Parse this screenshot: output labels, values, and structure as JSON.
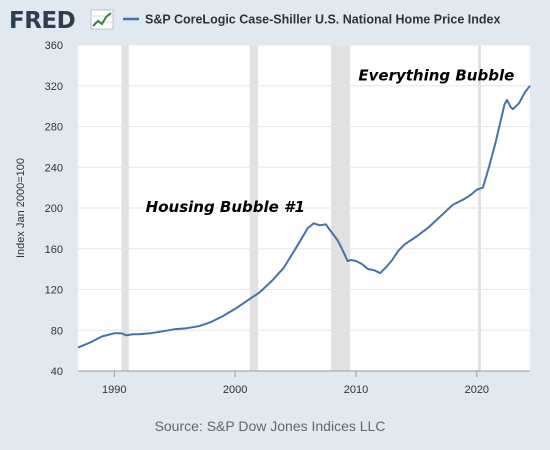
{
  "header": {
    "logo_text": "FRED",
    "logo_icon": "fred-chart-logo-icon",
    "legend_label": "S&P CoreLogic Case-Shiller U.S. National Home Price Index"
  },
  "source": "Source: S&P Dow Jones Indices LLC",
  "chart_data": {
    "type": "line",
    "title": "",
    "xlabel": "",
    "ylabel": "Index Jan 2000=100",
    "xlim": [
      1987,
      2024.4
    ],
    "ylim": [
      40,
      360
    ],
    "x_ticks": [
      1990,
      2000,
      2010,
      2020
    ],
    "y_ticks": [
      40,
      80,
      120,
      160,
      200,
      240,
      280,
      320,
      360
    ],
    "grid": true,
    "line_color": "#4572a7",
    "recession_color": "#e1e1e1",
    "recessions": [
      [
        1990.6,
        1991.2
      ],
      [
        2001.2,
        2001.9
      ],
      [
        2007.95,
        2009.5
      ],
      [
        2020.1,
        2020.35
      ]
    ],
    "series": [
      {
        "name": "S&P CoreLogic Case-Shiller U.S. National Home Price Index",
        "x": [
          1987.0,
          1988.0,
          1989.0,
          1990.0,
          1990.6,
          1991.0,
          1991.5,
          1992.0,
          1993.0,
          1994.0,
          1995.0,
          1996.0,
          1997.0,
          1998.0,
          1999.0,
          2000.0,
          2001.0,
          2002.0,
          2003.0,
          2004.0,
          2005.0,
          2006.0,
          2006.5,
          2007.0,
          2007.5,
          2008.0,
          2008.5,
          2009.0,
          2009.3,
          2009.6,
          2010.0,
          2010.5,
          2011.0,
          2011.5,
          2012.0,
          2012.5,
          2013.0,
          2013.5,
          2014.0,
          2015.0,
          2016.0,
          2017.0,
          2018.0,
          2019.0,
          2019.5,
          2020.0,
          2020.5,
          2021.0,
          2021.5,
          2022.0,
          2022.3,
          2022.5,
          2022.8,
          2023.0,
          2023.5,
          2024.0,
          2024.4
        ],
        "values": [
          63,
          68,
          74,
          77,
          77,
          75,
          76,
          76,
          77,
          79,
          81,
          82,
          84,
          88,
          94,
          101,
          109,
          117,
          128,
          141,
          160,
          180,
          185,
          183,
          184,
          176,
          168,
          156,
          148,
          149,
          148,
          145,
          140,
          139,
          136,
          142,
          149,
          158,
          164,
          172,
          181,
          192,
          203,
          209,
          213,
          218,
          220,
          240,
          262,
          287,
          302,
          306,
          299,
          297,
          303,
          314,
          320
        ]
      }
    ],
    "annotations": [
      {
        "text": "Housing Bubble #1",
        "x": 1992.6,
        "y": 196
      },
      {
        "text": "Everything Bubble",
        "x": 2010.2,
        "y": 325
      }
    ]
  }
}
